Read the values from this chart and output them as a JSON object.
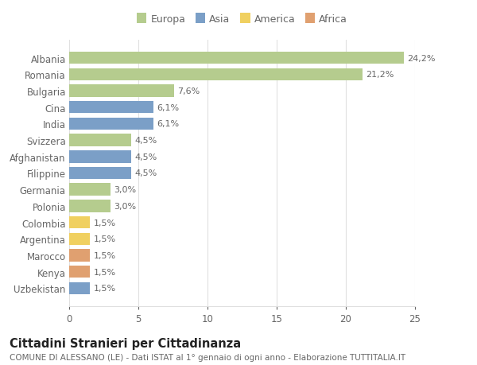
{
  "categories": [
    "Albania",
    "Romania",
    "Bulgaria",
    "Cina",
    "India",
    "Svizzera",
    "Afghanistan",
    "Filippine",
    "Germania",
    "Polonia",
    "Colombia",
    "Argentina",
    "Marocco",
    "Kenya",
    "Uzbekistan"
  ],
  "values": [
    24.2,
    21.2,
    7.6,
    6.1,
    6.1,
    4.5,
    4.5,
    4.5,
    3.0,
    3.0,
    1.5,
    1.5,
    1.5,
    1.5,
    1.5
  ],
  "labels": [
    "24,2%",
    "21,2%",
    "7,6%",
    "6,1%",
    "6,1%",
    "4,5%",
    "4,5%",
    "4,5%",
    "3,0%",
    "3,0%",
    "1,5%",
    "1,5%",
    "1,5%",
    "1,5%",
    "1,5%"
  ],
  "colors": [
    "#b5cc8e",
    "#b5cc8e",
    "#b5cc8e",
    "#7b9fc7",
    "#7b9fc7",
    "#b5cc8e",
    "#7b9fc7",
    "#7b9fc7",
    "#b5cc8e",
    "#b5cc8e",
    "#f0d060",
    "#f0d060",
    "#e0a070",
    "#e0a070",
    "#7b9fc7"
  ],
  "legend_labels": [
    "Europa",
    "Asia",
    "America",
    "Africa"
  ],
  "legend_colors": [
    "#b5cc8e",
    "#7b9fc7",
    "#f0d060",
    "#e0a070"
  ],
  "title": "Cittadini Stranieri per Cittadinanza",
  "subtitle": "COMUNE DI ALESSANO (LE) - Dati ISTAT al 1° gennaio di ogni anno - Elaborazione TUTTITALIA.IT",
  "xlim": [
    0,
    25
  ],
  "xticks": [
    0,
    5,
    10,
    15,
    20,
    25
  ],
  "background_color": "#ffffff",
  "grid_color": "#e0e0e0",
  "text_color": "#666666",
  "title_color": "#222222",
  "label_fontsize": 8.0,
  "tick_fontsize": 8.5,
  "title_fontsize": 10.5,
  "subtitle_fontsize": 7.5,
  "bar_height": 0.75
}
